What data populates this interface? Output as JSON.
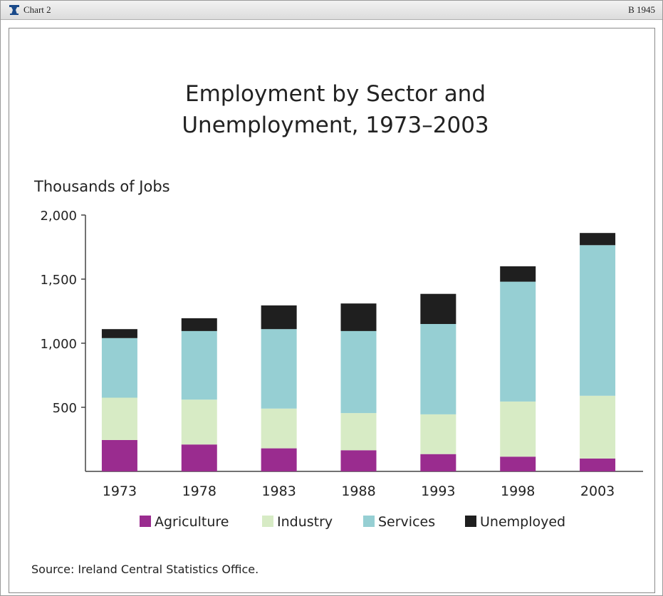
{
  "window": {
    "label": "Chart 2",
    "code": "B 1945"
  },
  "icons": {
    "logo": "pedestal-logo-icon"
  },
  "colors": {
    "Agriculture": "#9a2c8f",
    "Industry": "#d7ebc5",
    "Services": "#96cfd3",
    "Unemployed": "#1f1f1f",
    "axis": "#444444"
  },
  "chart_data": {
    "type": "bar",
    "stacked": true,
    "title": "Employment by Sector and Unemployment, 1973–2003",
    "title_lines": [
      "Employment by Sector and",
      "Unemployment, 1973–2003"
    ],
    "ylabel": "Thousands of Jobs",
    "xlabel": "",
    "ylim": [
      0,
      2000
    ],
    "yticks": [
      500,
      1000,
      1500,
      2000
    ],
    "ytick_labels": [
      "500",
      "1,000",
      "1,500",
      "2,000"
    ],
    "categories": [
      "1973",
      "1978",
      "1983",
      "1988",
      "1993",
      "1998",
      "2003"
    ],
    "series": [
      {
        "name": "Agriculture",
        "values": [
          245,
          210,
          180,
          165,
          135,
          115,
          100
        ]
      },
      {
        "name": "Industry",
        "values": [
          330,
          350,
          310,
          290,
          310,
          430,
          490
        ]
      },
      {
        "name": "Services",
        "values": [
          465,
          535,
          620,
          640,
          705,
          935,
          1175
        ]
      },
      {
        "name": "Unemployed",
        "values": [
          70,
          100,
          185,
          215,
          235,
          120,
          95
        ]
      }
    ],
    "legend_placement": "bottom",
    "grid": false,
    "source": "Source: Ireland Central Statistics Office."
  }
}
